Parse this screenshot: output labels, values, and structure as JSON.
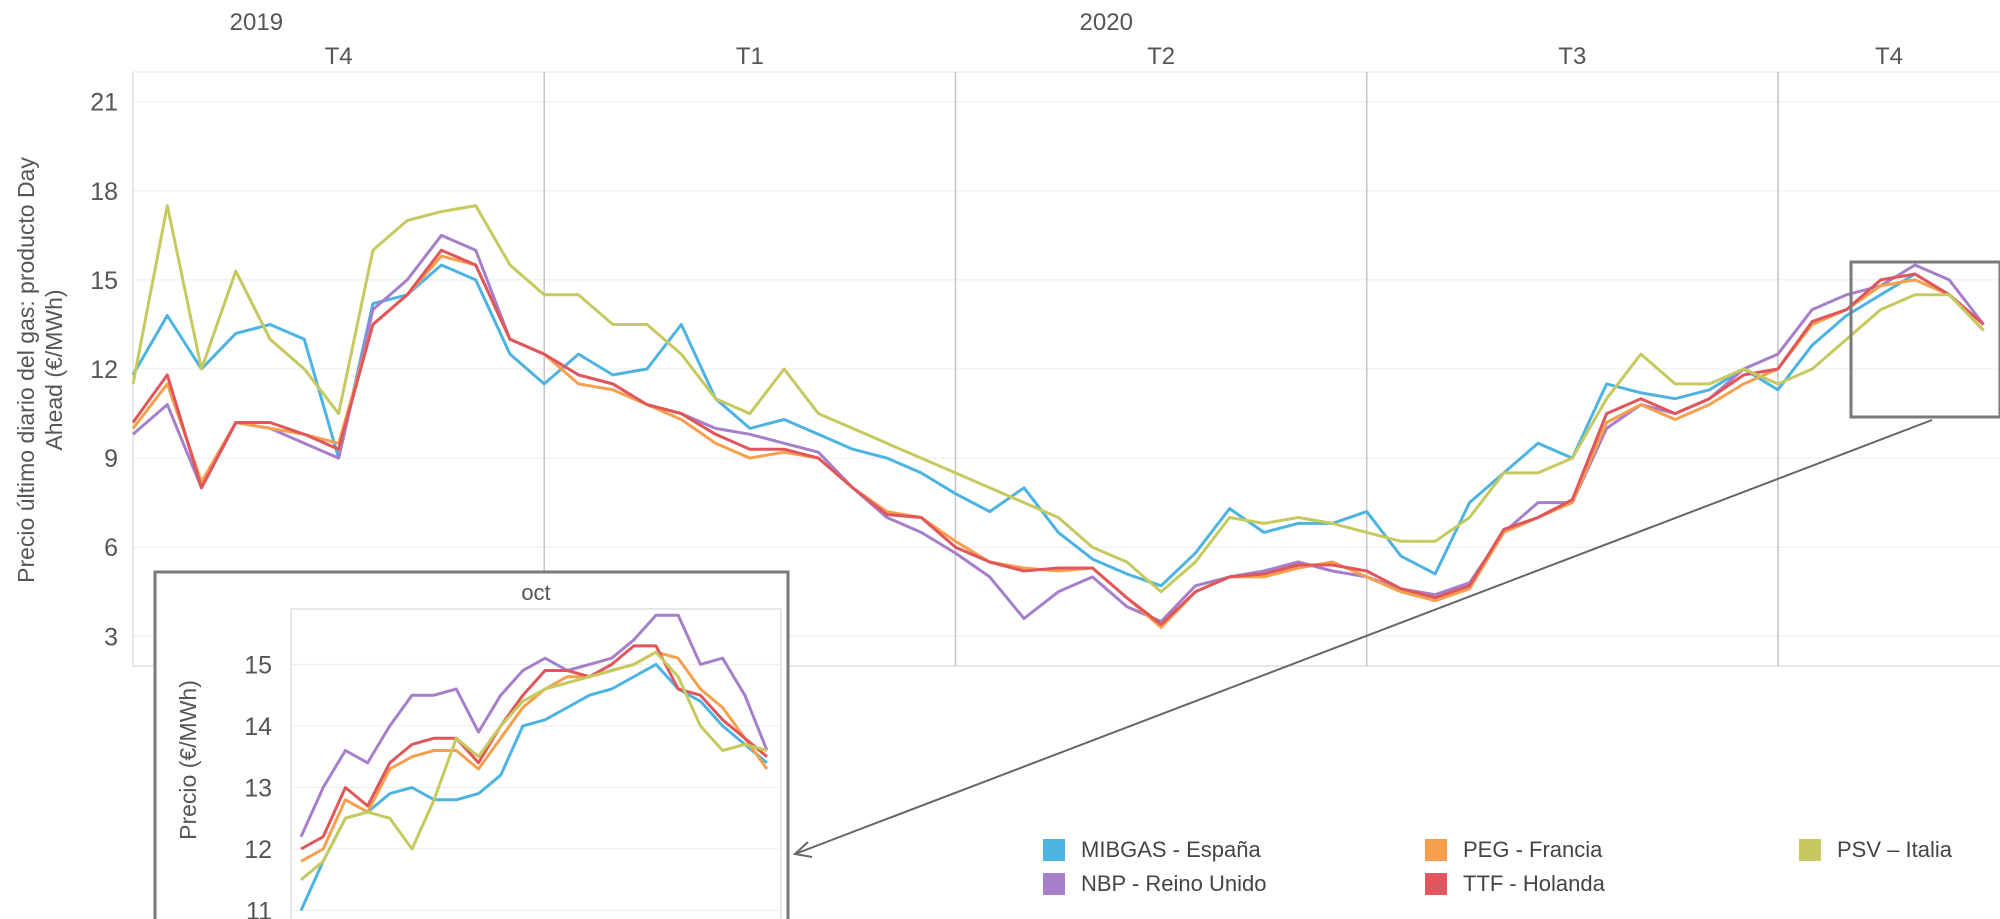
{
  "chart_data": [
    {
      "type": "line",
      "title": "",
      "ylabel": "Precio último diario del gas: producto Day Ahead (€/MWh)",
      "ylabel_lines": [
        "Precio último diario del gas: producto Day",
        "Ahead (€/MWh)"
      ],
      "ylim": [
        2,
        22
      ],
      "yticks": [
        3,
        6,
        9,
        12,
        15,
        18,
        21
      ],
      "grid": true,
      "years": [
        {
          "label": "2019",
          "span": [
            0,
            3
          ]
        },
        {
          "label": "2020",
          "span": [
            3,
            15
          ]
        }
      ],
      "quarters": [
        {
          "label": "T4",
          "span": [
            0,
            3
          ]
        },
        {
          "label": "T1",
          "span": [
            3,
            6
          ]
        },
        {
          "label": "T2",
          "span": [
            6,
            9
          ]
        },
        {
          "label": "T3",
          "span": [
            9,
            12
          ]
        },
        {
          "label": "T4",
          "span": [
            12,
            15
          ]
        }
      ],
      "x": [
        0,
        0.25,
        0.5,
        0.75,
        1,
        1.25,
        1.5,
        1.75,
        2,
        2.25,
        2.5,
        2.75,
        3,
        3.25,
        3.5,
        3.75,
        4,
        4.25,
        4.5,
        4.75,
        5,
        5.25,
        5.5,
        5.75,
        6,
        6.25,
        6.5,
        6.75,
        7,
        7.25,
        7.5,
        7.75,
        8,
        8.25,
        8.5,
        8.75,
        9,
        9.25,
        9.5,
        9.75,
        10,
        10.25,
        10.5,
        10.75,
        11,
        11.25,
        11.5,
        11.75,
        12,
        12.25,
        12.5,
        12.75,
        13,
        13.25,
        13.5
      ],
      "series": [
        {
          "name": "MIBGAS - España",
          "color": "#4db3e2",
          "values": [
            11.8,
            13.8,
            12.0,
            13.2,
            13.5,
            13.0,
            9.0,
            14.2,
            14.5,
            15.5,
            15.0,
            12.5,
            11.5,
            12.5,
            11.8,
            12.0,
            13.5,
            11.0,
            10.0,
            10.3,
            9.8,
            9.3,
            9.0,
            8.5,
            7.8,
            7.2,
            8.0,
            6.5,
            5.6,
            5.1,
            4.7,
            5.8,
            7.3,
            6.5,
            6.8,
            6.8,
            7.2,
            5.7,
            5.1,
            7.5,
            8.5,
            9.5,
            9.0,
            11.5,
            11.2,
            11.0,
            11.3,
            12.0,
            11.3,
            12.8,
            13.8,
            14.5,
            15.2,
            14.5,
            13.5
          ]
        },
        {
          "name": "NBP - Reino Unido",
          "color": "#a67fcb",
          "values": [
            9.8,
            10.8,
            8.0,
            10.2,
            10.0,
            9.5,
            9.0,
            14.0,
            15.0,
            16.5,
            16.0,
            13.0,
            12.5,
            11.8,
            11.5,
            10.8,
            10.5,
            10.0,
            9.8,
            9.5,
            9.2,
            8.0,
            7.0,
            6.5,
            5.8,
            5.0,
            3.6,
            4.5,
            5.0,
            4.0,
            3.5,
            4.7,
            5.0,
            5.2,
            5.5,
            5.2,
            5.0,
            4.6,
            4.4,
            4.8,
            6.5,
            7.5,
            7.5,
            10.0,
            10.8,
            10.5,
            11.0,
            12.0,
            12.5,
            14.0,
            14.5,
            14.8,
            15.5,
            15.0,
            13.5
          ]
        },
        {
          "name": "PEG - Francia",
          "color": "#f6a04d",
          "values": [
            10.0,
            11.5,
            8.2,
            10.2,
            10.0,
            9.8,
            9.5,
            13.5,
            14.5,
            15.8,
            15.5,
            13.0,
            12.5,
            11.5,
            11.3,
            10.8,
            10.3,
            9.5,
            9.0,
            9.2,
            9.0,
            8.0,
            7.2,
            7.0,
            6.2,
            5.5,
            5.3,
            5.2,
            5.3,
            4.3,
            3.3,
            4.5,
            5.0,
            5.0,
            5.3,
            5.5,
            5.0,
            4.5,
            4.2,
            4.6,
            6.5,
            7.0,
            7.5,
            10.2,
            10.8,
            10.3,
            10.8,
            11.5,
            12.0,
            13.5,
            14.0,
            14.8,
            15.0,
            14.5,
            13.3
          ]
        },
        {
          "name": "TTF - Holanda",
          "color": "#e0575b",
          "values": [
            10.2,
            11.8,
            8.0,
            10.2,
            10.2,
            9.8,
            9.3,
            13.5,
            14.5,
            16.0,
            15.5,
            13.0,
            12.5,
            11.8,
            11.5,
            10.8,
            10.5,
            9.8,
            9.3,
            9.3,
            9.0,
            8.0,
            7.1,
            7.0,
            6.0,
            5.5,
            5.2,
            5.3,
            5.3,
            4.3,
            3.4,
            4.5,
            5.0,
            5.1,
            5.4,
            5.4,
            5.2,
            4.6,
            4.3,
            4.7,
            6.6,
            7.0,
            7.6,
            10.5,
            11.0,
            10.5,
            11.0,
            11.8,
            12.0,
            13.6,
            14.0,
            15.0,
            15.2,
            14.5,
            13.5
          ]
        },
        {
          "name": "PSV – Italia",
          "color": "#c5c95e",
          "values": [
            11.5,
            17.5,
            12.0,
            15.3,
            13.0,
            12.0,
            10.5,
            16.0,
            17.0,
            17.3,
            17.5,
            15.5,
            14.5,
            14.5,
            13.5,
            13.5,
            12.5,
            11.0,
            10.5,
            12.0,
            10.5,
            10.0,
            9.5,
            9.0,
            8.5,
            8.0,
            7.5,
            7.0,
            6.0,
            5.5,
            4.5,
            5.5,
            7.0,
            6.8,
            7.0,
            6.8,
            6.5,
            6.2,
            6.2,
            7.0,
            8.5,
            8.5,
            9.0,
            11.0,
            12.5,
            11.5,
            11.5,
            12.0,
            11.5,
            12.0,
            13.0,
            14.0,
            14.5,
            14.5,
            13.3
          ]
        }
      ],
      "legend_position": "bottom-right"
    },
    {
      "type": "line",
      "title": "oct",
      "ylabel": "Precio (€/MWh)",
      "ylim": [
        10.7,
        15.9
      ],
      "yticks": [
        11,
        12,
        13,
        14,
        15
      ],
      "grid": true,
      "x": [
        0,
        1,
        2,
        3,
        4,
        5,
        6,
        7,
        8,
        9,
        10,
        11,
        12,
        13,
        14,
        15,
        16,
        17,
        18,
        19,
        20,
        21
      ],
      "series": [
        {
          "name": "MIBGAS - España",
          "color": "#4db3e2",
          "values": [
            11.0,
            11.8,
            12.5,
            12.6,
            12.9,
            13.0,
            12.8,
            12.8,
            12.9,
            13.2,
            14.0,
            14.1,
            14.3,
            14.5,
            14.6,
            14.8,
            15.0,
            14.6,
            14.4,
            14.0,
            13.7,
            13.4
          ]
        },
        {
          "name": "NBP - Reino Unido",
          "color": "#a67fcb",
          "values": [
            12.2,
            13.0,
            13.6,
            13.4,
            14.0,
            14.5,
            14.5,
            14.6,
            13.9,
            14.5,
            14.9,
            15.1,
            14.9,
            15.0,
            15.1,
            15.4,
            15.8,
            15.8,
            15.0,
            15.1,
            14.5,
            13.6
          ]
        },
        {
          "name": "PEG - Francia",
          "color": "#f6a04d",
          "values": [
            11.8,
            12.0,
            12.8,
            12.6,
            13.3,
            13.5,
            13.6,
            13.6,
            13.3,
            13.8,
            14.3,
            14.6,
            14.8,
            14.8,
            14.9,
            15.0,
            15.2,
            15.1,
            14.6,
            14.3,
            13.8,
            13.3
          ]
        },
        {
          "name": "TTF - Holanda",
          "color": "#e0575b",
          "values": [
            12.0,
            12.2,
            13.0,
            12.7,
            13.4,
            13.7,
            13.8,
            13.8,
            13.4,
            14.0,
            14.5,
            14.9,
            14.9,
            14.8,
            15.0,
            15.3,
            15.3,
            14.6,
            14.5,
            14.1,
            13.8,
            13.5
          ]
        },
        {
          "name": "PSV – Italia",
          "color": "#c5c95e",
          "values": [
            11.5,
            11.8,
            12.5,
            12.6,
            12.5,
            12.0,
            12.8,
            13.8,
            13.5,
            14.0,
            14.4,
            14.6,
            14.7,
            14.8,
            14.9,
            15.0,
            15.2,
            14.8,
            14.0,
            13.6,
            13.7,
            13.6
          ]
        }
      ]
    }
  ],
  "legend": [
    {
      "label": "MIBGAS - España",
      "color": "#4db3e2"
    },
    {
      "label": "PEG - Francia",
      "color": "#f6a04d"
    },
    {
      "label": "PSV – Italia",
      "color": "#c5c95e"
    },
    {
      "label": "NBP - Reino Unido",
      "color": "#a67fcb"
    },
    {
      "label": "TTF - Holanda",
      "color": "#e0575b"
    }
  ]
}
